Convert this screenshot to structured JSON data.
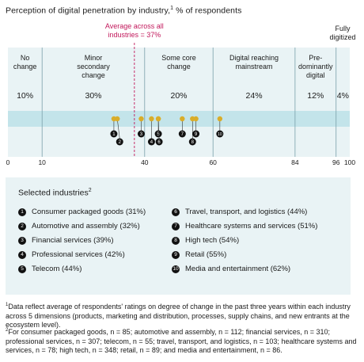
{
  "title": "Perception of digital penetration by industry,",
  "title_sup": "1",
  "title_suffix": " % of respondents",
  "chart_data": {
    "type": "scatter",
    "xlim": [
      0,
      100
    ],
    "x_ticks": [
      "0",
      "10",
      "40",
      "60",
      "84",
      "96",
      "100"
    ],
    "average": {
      "value": 37,
      "label_line1": "Average across all",
      "label_line2": "industries = 37%"
    },
    "bands": [
      {
        "label": [
          "No",
          "change"
        ],
        "from": 0,
        "to": 10,
        "percent": "10%"
      },
      {
        "label": [
          "Minor",
          "secondary",
          "change"
        ],
        "from": 10,
        "to": 40,
        "percent": "30%"
      },
      {
        "label": [
          "Some core",
          "change"
        ],
        "from": 40,
        "to": 60,
        "percent": "20%"
      },
      {
        "label": [
          "Digital reaching",
          "mainstream"
        ],
        "from": 60,
        "to": 84,
        "percent": "24%"
      },
      {
        "label": [
          "Pre-",
          "dominantly",
          "digital"
        ],
        "from": 84,
        "to": 96,
        "percent": "12%"
      },
      {
        "label": [],
        "from": 96,
        "to": 100,
        "percent": "4%"
      }
    ],
    "fully_digitized": [
      "Fully",
      "digitized"
    ],
    "points": [
      {
        "id": "1",
        "name": "Consumer packaged goods",
        "value": 31
      },
      {
        "id": "2",
        "name": "Automotive and assembly",
        "value": 32
      },
      {
        "id": "3",
        "name": "Financial services",
        "value": 39
      },
      {
        "id": "4",
        "name": "Professional services",
        "value": 42
      },
      {
        "id": "5",
        "name": "Telecom",
        "value": 44
      },
      {
        "id": "6",
        "name": "Travel, transport, and logistics",
        "value": 44
      },
      {
        "id": "7",
        "name": "Healthcare systems and services",
        "value": 51
      },
      {
        "id": "8",
        "name": "High tech",
        "value": 54
      },
      {
        "id": "9",
        "name": "Retail",
        "value": 55
      },
      {
        "id": "10",
        "name": "Media and entertainment",
        "value": 62
      }
    ]
  },
  "legend": {
    "title": "Selected industries",
    "title_sup": "2",
    "items": [
      {
        "num": "1",
        "label": "Consumer packaged goods (31%)"
      },
      {
        "num": "2",
        "label": "Automotive and assembly (32%)"
      },
      {
        "num": "3",
        "label": "Financial services (39%)"
      },
      {
        "num": "4",
        "label": "Professional services (42%)"
      },
      {
        "num": "5",
        "label": "Telecom (44%)"
      },
      {
        "num": "6",
        "label": "Travel, transport, and logistics (44%)"
      },
      {
        "num": "7",
        "label": "Healthcare systems and services (51%)"
      },
      {
        "num": "8",
        "label": "High tech (54%)"
      },
      {
        "num": "9",
        "label": "Retail (55%)"
      },
      {
        "num": "10",
        "label": "Media and entertainment (62%)"
      }
    ]
  },
  "footnotes": {
    "note1_sup": "1",
    "note1": "Data reflect average of respondents' ratings on degree of change in the past three years within each industry across 5 dimensions (products, marketing and distribution, processes, supply chains, and new entrants at the ecosystem level).",
    "note2_sup": "2",
    "note2": "For consumer packaged goods, n = 85; automotive and assembly, n = 112; financial services, n = 310; professional services, n = 307; telecom, n = 55; travel, transport, and logistics, n = 103; healthcare systems and services, n = 78; high tech, n = 348; retail, n = 89; and media and entertainment, n = 86."
  },
  "colors": {
    "band_bg": "#e9f3f5",
    "strip": "#c3e4ea",
    "point": "#d9ad2a",
    "average": "#c2185b",
    "divider": "#7aa0ab"
  }
}
